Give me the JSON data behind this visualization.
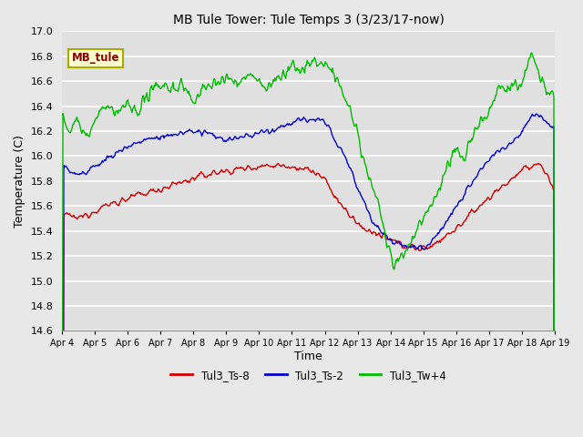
{
  "title": "MB Tule Tower: Tule Temps 3 (3/23/17-now)",
  "ylabel": "Temperature (C)",
  "xlabel": "Time",
  "ylim": [
    14.6,
    17.0
  ],
  "yticks": [
    14.6,
    14.8,
    15.0,
    15.2,
    15.4,
    15.6,
    15.8,
    16.0,
    16.2,
    16.4,
    16.6,
    16.8,
    17.0
  ],
  "xtick_labels": [
    "Apr 4",
    "Apr 5",
    "Apr 6",
    "Apr 7",
    "Apr 8",
    "Apr 9",
    "Apr 10",
    "Apr 11",
    "Apr 12",
    "Apr 13",
    "Apr 14",
    "Apr 15",
    "Apr 16",
    "Apr 17",
    "Apr 18",
    "Apr 19"
  ],
  "colors": {
    "Tul3_Ts-8": "#cc0000",
    "Tul3_Ts-2": "#0000cc",
    "Tul3_Tw+4": "#00bb00"
  },
  "bg_color": "#e8e8e8",
  "plot_bg": "#e0e0e0",
  "grid_color": "#ffffff",
  "legend_box_color": "#ffffcc",
  "legend_box_edge": "#aaaa00",
  "legend_text_color": "#880000"
}
